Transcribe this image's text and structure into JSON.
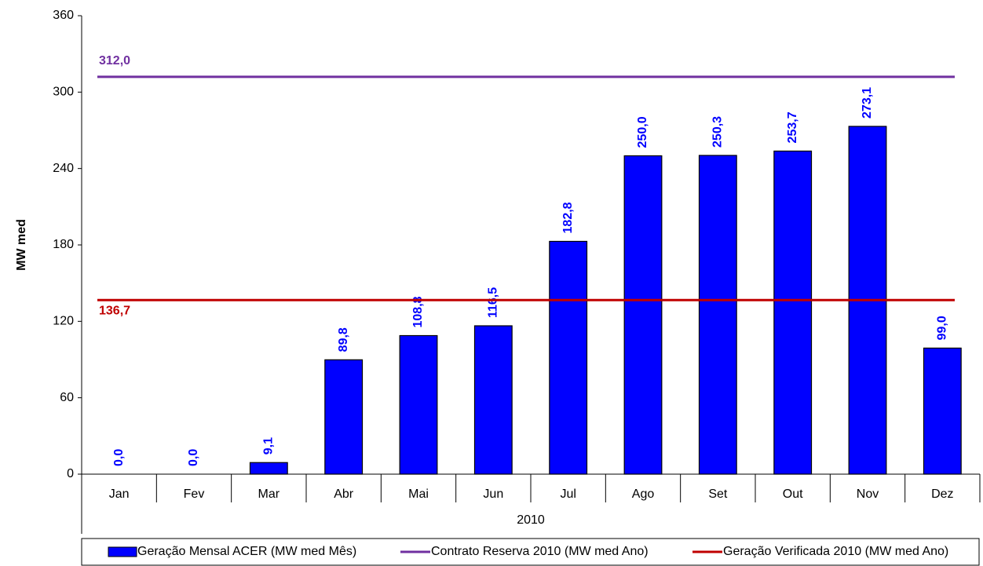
{
  "chart_data": {
    "type": "bar",
    "ylabel": "MW med",
    "group_label": "2010",
    "categories": [
      "Jan",
      "Fev",
      "Mar",
      "Abr",
      "Mai",
      "Jun",
      "Jul",
      "Ago",
      "Set",
      "Out",
      "Nov",
      "Dez"
    ],
    "series": [
      {
        "name": "Geração Mensal ACER (MW med Mês)",
        "color": "#0000ff",
        "values": [
          0,
          0,
          9.1,
          89.8,
          108.8,
          116.5,
          182.8,
          250.0,
          250.3,
          253.7,
          273.1,
          99.0
        ],
        "value_labels": [
          "0,0",
          "0,0",
          "9,1",
          "89,8",
          "108,8",
          "116,5",
          "182,8",
          "250,0",
          "250,3",
          "253,7",
          "273,1",
          "99,0"
        ]
      }
    ],
    "reference_lines": [
      {
        "name": "Contrato Reserva 2010 (MW med Ano)",
        "color": "#7030a0",
        "value": 312.0,
        "value_label": "312,0"
      },
      {
        "name": "Geração Verificada 2010 (MW med Ano)",
        "color": "#c00000",
        "value": 136.7,
        "value_label": "136,7"
      }
    ],
    "ylim": [
      0,
      360
    ],
    "yticks": [
      0,
      60,
      120,
      180,
      240,
      300,
      360
    ]
  }
}
